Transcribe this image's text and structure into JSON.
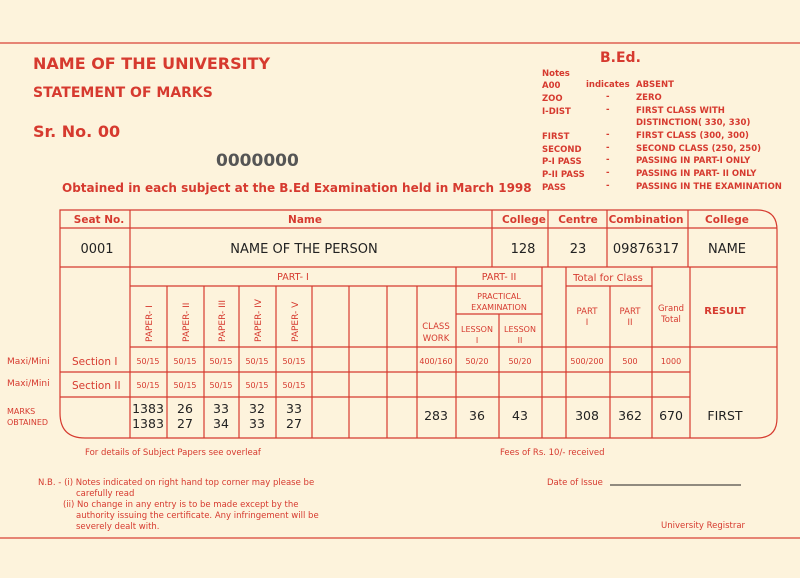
{
  "header": {
    "university": "NAME OF THE UNIVERSITY",
    "statement": "STATEMENT OF MARKS",
    "serial": "Sr. No. 00",
    "number": "0000000",
    "obtained": "Obtained in each subject at the B.Ed Examination held in March 1998",
    "degree": "B.Ed."
  },
  "notes": {
    "title": "Notes",
    "items": [
      {
        "code": "A00",
        "sep": "indicates",
        "meaning": "ABSENT"
      },
      {
        "code": "ZOO",
        "sep": "-",
        "meaning": "ZERO"
      },
      {
        "code": "I-DIST",
        "sep": "-",
        "meaning": "FIRST CLASS WITH",
        "meaning2": "DISTINCTION( 330, 330)"
      },
      {
        "code": "FIRST",
        "sep": "-",
        "meaning": "FIRST CLASS (300, 300)"
      },
      {
        "code": "SECOND",
        "sep": "-",
        "meaning": "SECOND CLASS (250, 250)"
      },
      {
        "code": "P-I PASS",
        "sep": "-",
        "meaning": "PASSING IN PART-I ONLY"
      },
      {
        "code": "P-II PASS",
        "sep": "-",
        "meaning": "PASSING IN PART- II ONLY"
      },
      {
        "code": "PASS",
        "sep": "-",
        "meaning": "PASSING IN THE EXAMINATION"
      }
    ]
  },
  "table": {
    "head": [
      "Seat No.",
      "Name",
      "College",
      "Centre",
      "Combination",
      "College"
    ],
    "row": [
      "0001",
      "NAME OF THE PERSON",
      "128",
      "23",
      "09876317",
      "NAME"
    ],
    "part1": "PART- I",
    "part2": "PART- II",
    "total_for_class": "Total for Class",
    "papers": [
      "PAPER- I",
      "PAPER- II",
      "PAPER- III",
      "PAPER- IV",
      "PAPER- V"
    ],
    "class_work": [
      "CLASS",
      "WORK"
    ],
    "practical": [
      "PRACTICAL",
      "EXAMINATION"
    ],
    "lesson1": [
      "LESSON",
      "I"
    ],
    "lesson2": [
      "LESSON",
      "II"
    ],
    "tpart1": [
      "PART",
      "I"
    ],
    "tpart2": [
      "PART",
      "II"
    ],
    "grand": [
      "Grand",
      "Total"
    ],
    "result": "RESULT",
    "left_labels": [
      "Maxi/Mini",
      "Maxi/Mini",
      "MARKS",
      "OBTAINED"
    ],
    "sections": [
      "Section I",
      "Section II"
    ],
    "sec1": [
      "50/15",
      "50/15",
      "50/15",
      "50/15",
      "50/15"
    ],
    "sec2": [
      "50/15",
      "50/15",
      "50/15",
      "50/15",
      "50/15"
    ],
    "sec1_rest": [
      "400/160",
      "50/20",
      "50/20",
      "500/200",
      "500",
      "1000"
    ],
    "marks_a": [
      "1383",
      "26",
      "33",
      "32",
      "33"
    ],
    "marks_b": [
      "1383",
      "27",
      "34",
      "33",
      "27"
    ],
    "marks_rest": [
      "283",
      "36",
      "43",
      "308",
      "362",
      "670",
      "FIRST"
    ]
  },
  "footer": {
    "details": "For details of Subject Papers see overleaf",
    "fees": "Fees of Rs. 10/- received",
    "nb": [
      "N.B. -  (i) Notes indicated on right hand top corner may please be",
      "carefully read",
      "(ii) No change in any entry is to be made except by the",
      "authority issuing the certificate. Any infringement will be",
      "severely dealt with."
    ],
    "date_label": "Date of Issue",
    "registrar": "University Registrar"
  },
  "colors": {
    "accent": "#d63a2f",
    "paper": "#fdf3dc"
  }
}
